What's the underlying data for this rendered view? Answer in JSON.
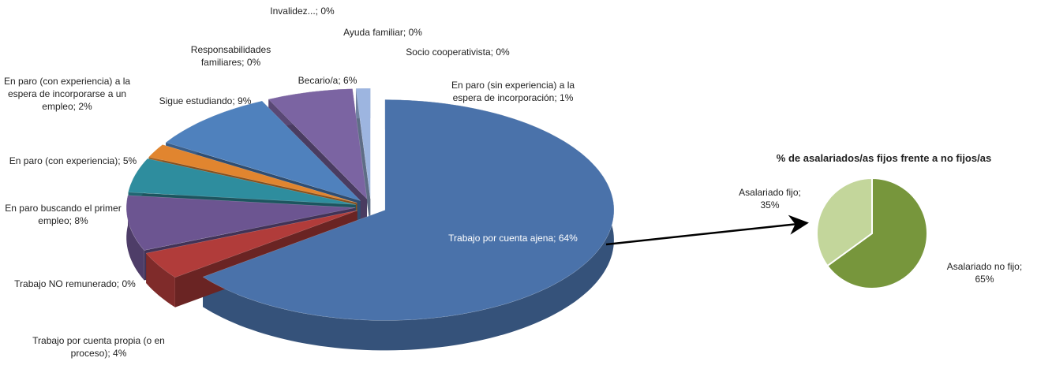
{
  "chart_data": [
    {
      "type": "pie3d",
      "categories": [
        "Trabajo por cuenta ajena;",
        "Trabajo por cuenta propia (o en proceso);",
        "Trabajo NO remunerado;",
        "En paro  buscando el primer empleo;",
        "En paro (con experiencia);",
        "En paro (con experiencia) a la espera de incorporarse a un empleo;",
        "Sigue estudiando;",
        "Responsabilidades familiares;",
        "Invalidez...;",
        "Becario/a;",
        "Ayuda familiar;",
        "Socio cooperativista;",
        "En paro (sin experiencia) a la espera de incorporación;"
      ],
      "values": [
        64,
        4,
        0,
        8,
        5,
        2,
        9,
        0,
        0,
        6,
        0,
        0,
        1
      ],
      "value_labels": [
        "64%",
        "4%",
        "0%",
        "8%",
        "5%",
        "2%",
        "9%",
        "0%",
        "0%",
        "6%",
        "0%",
        "0%",
        "1%"
      ],
      "colors": [
        "#4a72aa",
        "#b13c3a",
        "#7e9a48",
        "#6c5591",
        "#2e8d9e",
        "#e1852f",
        "#4f81bd",
        "#9b3b38",
        "#8064a2",
        "#7b64a2",
        "#2b7a8c",
        "#e08a3a",
        "#9db5e0"
      ]
    },
    {
      "type": "pie",
      "title": "% de asalariados/as fijos frente a no fijos/as",
      "categories": [
        "Asalariado no fijo;",
        "Asalariado fijo;"
      ],
      "values": [
        65,
        35
      ],
      "value_labels": [
        "65%",
        "35%"
      ],
      "colors": [
        "#77963c",
        "#c3d69b"
      ]
    }
  ]
}
